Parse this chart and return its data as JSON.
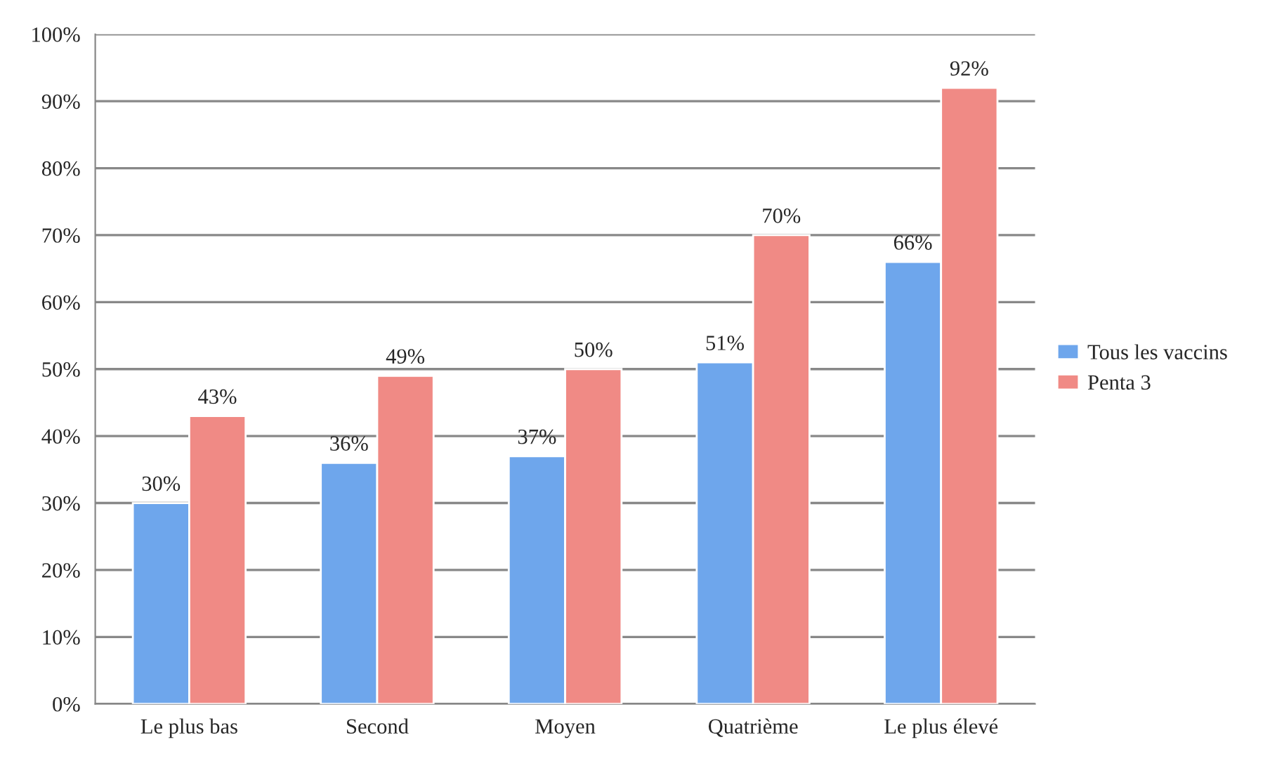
{
  "chart_data": {
    "type": "bar",
    "categories": [
      "Le plus bas",
      "Second",
      "Moyen",
      "Quatrième",
      "Le plus élevé"
    ],
    "series": [
      {
        "name": "Tous les vaccins",
        "color": "#6ea6ec",
        "values": [
          30,
          36,
          37,
          51,
          66
        ],
        "value_labels": [
          "30%",
          "36%",
          "37%",
          "51%",
          "66%"
        ]
      },
      {
        "name": "Penta 3",
        "color": "#f08a85",
        "values": [
          43,
          49,
          50,
          70,
          92
        ],
        "value_labels": [
          "43%",
          "49%",
          "50%",
          "70%",
          "92%"
        ]
      }
    ],
    "ylim": [
      0,
      100
    ],
    "yticks": [
      {
        "value": 0,
        "label": "0%"
      },
      {
        "value": 10,
        "label": "10%"
      },
      {
        "value": 20,
        "label": "20%"
      },
      {
        "value": 30,
        "label": "30%"
      },
      {
        "value": 40,
        "label": "40%"
      },
      {
        "value": 50,
        "label": "50%"
      },
      {
        "value": 60,
        "label": "60%"
      },
      {
        "value": 70,
        "label": "70%"
      },
      {
        "value": 80,
        "label": "80%"
      },
      {
        "value": 90,
        "label": "90%"
      },
      {
        "value": 100,
        "label": "100%"
      }
    ],
    "grid": "y",
    "legend": "right"
  }
}
